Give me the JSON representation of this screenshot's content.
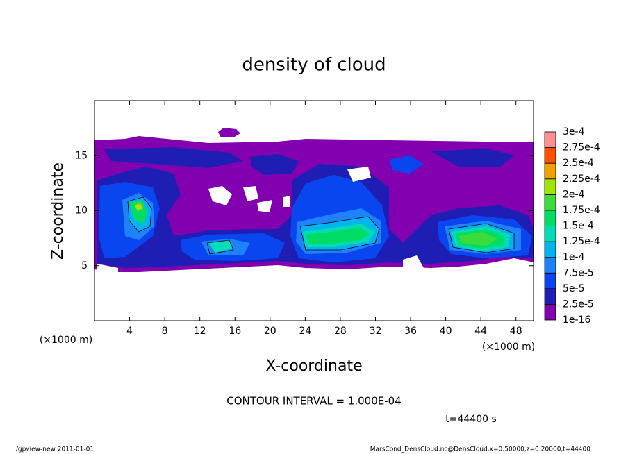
{
  "chart_data": {
    "type": "contour",
    "title": "density of cloud",
    "x_label": "X-coordinate",
    "y_label": "Z-coordinate",
    "x_unit": "(×1000 m)",
    "y_unit": "(×1000 m)",
    "xlim": [
      0,
      50
    ],
    "xticks": [
      4,
      8,
      12,
      16,
      20,
      24,
      28,
      32,
      36,
      40,
      44,
      48
    ],
    "ylim": [
      0,
      20
    ],
    "yticks": [
      5,
      10,
      15
    ],
    "colorbar": {
      "levels": [
        {
          "value": 1e-16,
          "label": "1e-16"
        },
        {
          "value": 2.5e-05,
          "label": "2.5e-5"
        },
        {
          "value": 5e-05,
          "label": "5e-5"
        },
        {
          "value": 7.5e-05,
          "label": "7.5e-5"
        },
        {
          "value": 0.0001,
          "label": "1e-4"
        },
        {
          "value": 0.000125,
          "label": "1.25e-4"
        },
        {
          "value": 0.00015,
          "label": "1.5e-4"
        },
        {
          "value": 0.000175,
          "label": "1.75e-4"
        },
        {
          "value": 0.0002,
          "label": "2e-4"
        },
        {
          "value": 0.000225,
          "label": "2.25e-4"
        },
        {
          "value": 0.00025,
          "label": "2.5e-4"
        },
        {
          "value": 0.000275,
          "label": "2.75e-4"
        },
        {
          "value": 0.0003,
          "label": "3e-4"
        }
      ],
      "colors": [
        "#8200b0",
        "#1e1eb4",
        "#0a46f0",
        "#1e82ff",
        "#00b4f0",
        "#00dcb4",
        "#00dc64",
        "#3cdc3c",
        "#a0e600",
        "#f0a000",
        "#ff5000",
        "#ff9090"
      ]
    },
    "contour_interval": "CONTOUR INTERVAL = 1.000E-04",
    "time_label": "t=44400 s",
    "footer_left": "./gpview-new  2011-01-01",
    "footer_right": "MarsCond_DensCloud.nc@DensCloud,x=0:50000,z=0:20000,t=44400"
  }
}
